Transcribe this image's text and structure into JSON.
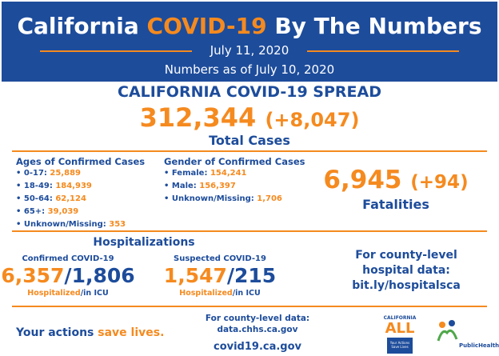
{
  "header": {
    "title": {
      "part1": "California ",
      "part2": "COVID-19",
      "part3": " By The Numbers"
    },
    "date": "July 11, 2020",
    "subtitle": "Numbers as of July 10, 2020"
  },
  "spread": {
    "heading": "CALIFORNIA COVID-19 SPREAD",
    "total": "312,344",
    "change": "(+8,047)",
    "label": "Total Cases"
  },
  "ages": {
    "heading": "Ages of Confirmed Cases",
    "items": [
      {
        "label": "0-17: ",
        "value": "25,889"
      },
      {
        "label": "18-49: ",
        "value": "184,939"
      },
      {
        "label": "50-64: ",
        "value": "62,124"
      },
      {
        "label": "65+: ",
        "value": "39,039"
      },
      {
        "label": "Unknown/Missing: ",
        "value": "353"
      }
    ]
  },
  "gender": {
    "heading": "Gender of Confirmed Cases",
    "items": [
      {
        "label": "Female: ",
        "value": "154,241"
      },
      {
        "label": "Male: ",
        "value": "156,397"
      },
      {
        "label": "Unknown/Missing: ",
        "value": "1,706"
      }
    ]
  },
  "fatalities": {
    "value": "6,945",
    "change": "(+94)",
    "label": "Fatalities"
  },
  "hospitalizations": {
    "heading": "Hospitalizations",
    "groups": [
      {
        "label": "Confirmed COVID-19",
        "hospitalized": "6,357",
        "separator": "/",
        "icu": "1,806",
        "note_hospitalized": "Hospitalized",
        "note_icu": "/in ICU"
      },
      {
        "label": "Suspected COVID-19",
        "hospitalized": "1,547",
        "separator": "/",
        "icu": "215",
        "note_hospitalized": "Hospitalized",
        "note_icu": "/in ICU"
      }
    ]
  },
  "county": {
    "lines": [
      "For county-level",
      "hospital data:"
    ],
    "link": "bit.ly/hospitalsca"
  },
  "footer": {
    "slogan_start": "Your actions ",
    "slogan_end": "save lives.",
    "data_label": "For county-level data:",
    "data_link": "data.chhs.ca.gov",
    "site": "covid19.ca.gov",
    "logo_ca": "CALIFORNIA",
    "logo_all": "ALL",
    "logo_tag": "Your Actions Save Lives",
    "logo_cdph": "PublicHealth"
  }
}
